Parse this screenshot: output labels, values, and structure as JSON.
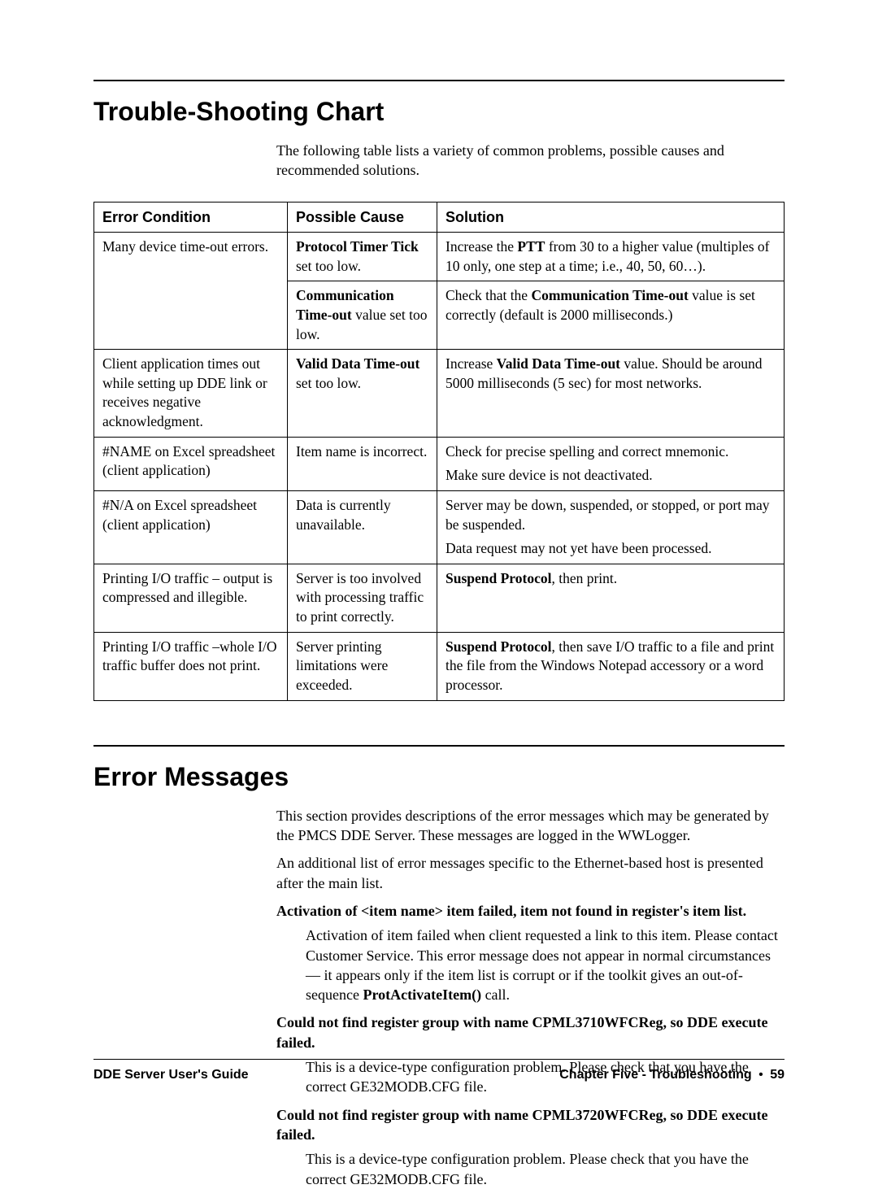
{
  "section1": {
    "title": "Trouble-Shooting Chart",
    "intro": "The following table lists a variety of common problems, possible causes and recommended solutions."
  },
  "table": {
    "headers": [
      "Error Condition",
      "Possible Cause",
      "Solution"
    ],
    "rows": [
      {
        "err": "Many device time-out errors.",
        "cause_html": "<span class=\"bold\">Protocol Timer Tick</span> set too low.",
        "sol_html": "Increase the <span class=\"bold\">PTT</span> from 30 to a higher value (multiples of 10 only, one step at a time; i.e., 40, 50, 60…)."
      },
      {
        "err": "",
        "cause_html": "<span class=\"bold\">Communication Time-out</span> value set too low.",
        "sol_html": "Check that the <span class=\"bold\">Communication Time-out</span> value is set correctly (default is 2000 milliseconds.)",
        "merge_up_err": true
      },
      {
        "err": "Client application times out while setting up DDE link or receives negative acknowledgment.",
        "cause_html": "<span class=\"bold\">Valid Data Time-out</span> set too low.",
        "sol_html": "Increase <span class=\"bold\">Valid Data Time-out</span> value. Should be around 5000 milliseconds (5 sec) for most networks."
      },
      {
        "err": "#NAME on Excel spreadsheet (client application)",
        "cause_html": "Item name is incorrect.",
        "sol_html": "<p class=\"cell-para\">Check for precise spelling and correct mnemonic.</p><p class=\"cell-para\">Make sure device is not deactivated.</p>"
      },
      {
        "err": "#N/A on Excel spreadsheet (client application)",
        "cause_html": "Data is currently unavailable.",
        "sol_html": "<p class=\"cell-para\">Server may be down, suspended, or stopped, or port may be suspended.</p><p class=\"cell-para\">Data request may not yet have been processed.</p>"
      },
      {
        "err": "Printing I/O traffic – output is compressed and illegible.",
        "cause_html": "Server is too involved with processing traffic to print correctly.",
        "sol_html": "<span class=\"bold\">Suspend Protocol</span>, then print."
      },
      {
        "err": "Printing I/O traffic –whole I/O traffic buffer does not print.",
        "cause_html": "Server printing limitations were exceeded.",
        "sol_html": "<span class=\"bold\">Suspend Protocol</span>, then save I/O traffic to a file and print the file from the Windows Notepad accessory or a word processor."
      }
    ]
  },
  "section2": {
    "title": "Error Messages",
    "intro1": "This section provides descriptions of the error messages which may be generated by the PMCS DDE Server. These messages are logged in the WWLogger.",
    "intro2": "An additional list of error messages specific to the Ethernet-based host is presented after the main list.",
    "msgs": [
      {
        "title": "Activation of <item name> item failed, item not found in register's item list.",
        "body_html": "Activation of item failed when client requested a link to this item. Please contact Customer Service. This error message does not appear in normal circumstances — it appears only if the item list is corrupt or if the toolkit gives an out-of-sequence <span class=\"bold\">ProtActivateItem()</span> call."
      },
      {
        "title": "Could not find register group with name CPML3710WFCReg, so DDE execute failed.",
        "body_html": "This is a device-type configuration problem. Please check that you have the correct GE32MODB.CFG file."
      },
      {
        "title": "Could not find register group with name CPML3720WFCReg, so DDE execute failed.",
        "body_html": "This is a device-type configuration problem. Please check that you have the correct GE32MODB.CFG file."
      }
    ]
  },
  "footer": {
    "left": "DDE Server User's Guide",
    "right_chapter": "Chapter Five - Troubleshooting",
    "bullet": "•",
    "page": "59"
  }
}
